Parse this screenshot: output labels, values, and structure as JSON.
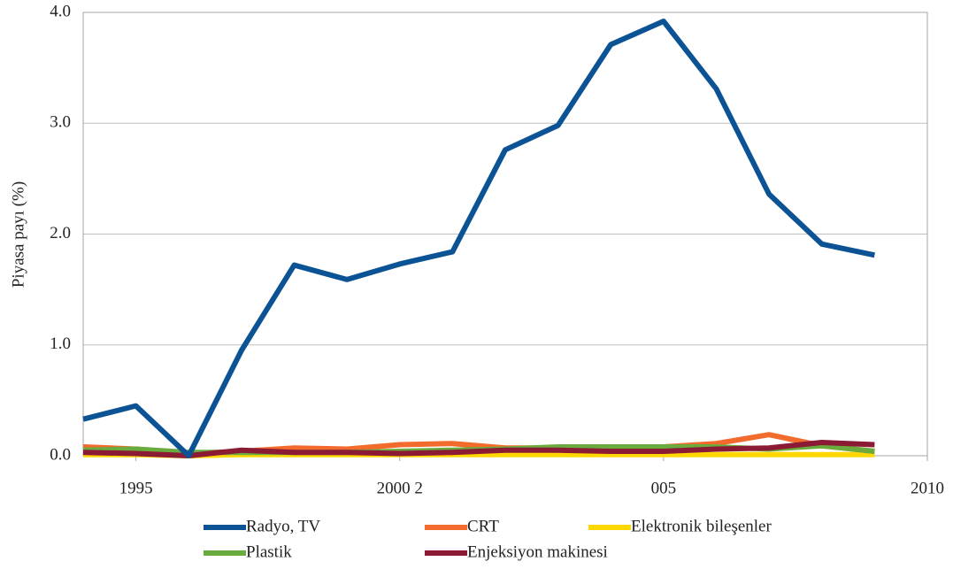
{
  "chart_data": {
    "type": "line",
    "y_label": "Piyasa payı (%)",
    "x": [
      1994,
      1995,
      1996,
      1997,
      1998,
      1999,
      2000,
      2001,
      2002,
      2003,
      2004,
      2005,
      2006,
      2007,
      2008,
      2009
    ],
    "xlim": [
      1994,
      2010
    ],
    "xticks": [
      1995,
      {
        "value": 2000,
        "label": "2000 2"
      },
      {
        "value": 2005,
        "label": "005"
      },
      2010
    ],
    "ylim": [
      0,
      4
    ],
    "yticks": [
      {
        "value": 0,
        "label": "0.0"
      },
      {
        "value": 1,
        "label": "1.0"
      },
      {
        "value": 2,
        "label": "2.0"
      },
      {
        "value": 3,
        "label": "3.0"
      },
      {
        "value": 4,
        "label": "4.0"
      }
    ],
    "grid": true,
    "legend": "bottom",
    "series": [
      {
        "name": "Radyo, TV",
        "color": "#0b5394",
        "values": [
          0.33,
          0.45,
          0.0,
          0.95,
          1.72,
          1.59,
          1.73,
          1.84,
          2.76,
          2.98,
          3.71,
          3.92,
          3.31,
          2.36,
          1.91,
          1.81
        ]
      },
      {
        "name": "CRT",
        "color": "#f26b2d",
        "values": [
          0.08,
          0.06,
          0.02,
          0.04,
          0.07,
          0.06,
          0.1,
          0.11,
          0.07,
          0.07,
          0.08,
          0.08,
          0.11,
          0.19,
          0.09,
          0.04
        ]
      },
      {
        "name": "Elektronik bileşenler",
        "color": "#ffd700",
        "values": [
          0.01,
          0.01,
          0.0,
          0.01,
          0.01,
          0.01,
          0.01,
          0.01,
          0.01,
          0.01,
          0.01,
          0.01,
          0.01,
          0.01,
          0.01,
          0.01
        ]
      },
      {
        "name": "Plastik",
        "color": "#6aab3e",
        "values": [
          0.05,
          0.06,
          0.03,
          0.03,
          0.03,
          0.03,
          0.04,
          0.05,
          0.06,
          0.08,
          0.08,
          0.08,
          0.08,
          0.06,
          0.09,
          0.04
        ]
      },
      {
        "name": "Enjeksiyon makinesi",
        "color": "#8b1a35",
        "values": [
          0.03,
          0.02,
          0.0,
          0.05,
          0.03,
          0.03,
          0.02,
          0.03,
          0.05,
          0.05,
          0.04,
          0.04,
          0.06,
          0.07,
          0.12,
          0.1
        ]
      }
    ]
  }
}
